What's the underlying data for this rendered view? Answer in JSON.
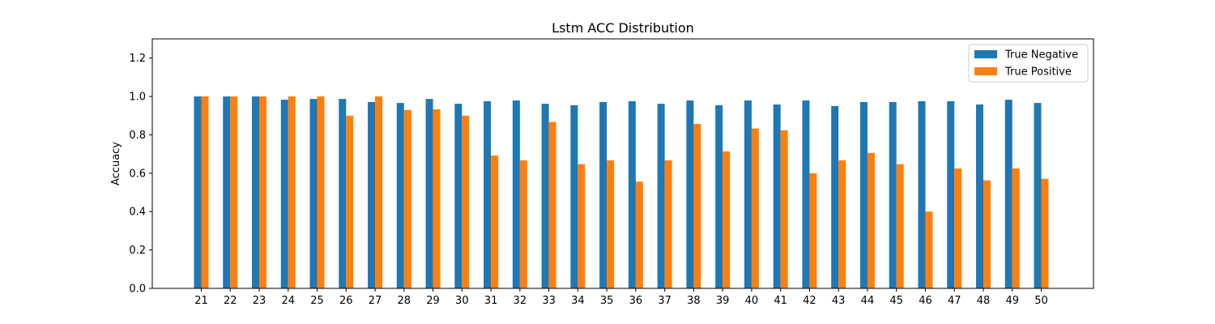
{
  "chart_data": {
    "type": "bar",
    "title": "Lstm ACC Distribution",
    "xlabel": "",
    "ylabel": "Accuacy",
    "ylim": [
      0,
      1.3
    ],
    "yticks": [
      0.0,
      0.2,
      0.4,
      0.6,
      0.8,
      1.0,
      1.2
    ],
    "ytick_labels": [
      "0.0",
      "0.2",
      "0.4",
      "0.6",
      "0.8",
      "1.0",
      "1.2"
    ],
    "grid": false,
    "legend_position": "top-right",
    "categories": [
      "21",
      "22",
      "23",
      "24",
      "25",
      "26",
      "27",
      "28",
      "29",
      "30",
      "31",
      "32",
      "33",
      "34",
      "35",
      "36",
      "37",
      "38",
      "39",
      "40",
      "41",
      "42",
      "43",
      "44",
      "45",
      "46",
      "47",
      "48",
      "49",
      "50"
    ],
    "series": [
      {
        "name": "True Negative",
        "color": "#1f77b4",
        "values": [
          1.0,
          1.0,
          1.0,
          0.983,
          0.987,
          0.987,
          0.971,
          0.966,
          0.987,
          0.962,
          0.975,
          0.979,
          0.962,
          0.954,
          0.971,
          0.975,
          0.962,
          0.979,
          0.954,
          0.979,
          0.958,
          0.979,
          0.95,
          0.971,
          0.971,
          0.975,
          0.975,
          0.958,
          0.983,
          0.966
        ]
      },
      {
        "name": "True Positive",
        "color": "#ff7f0e",
        "values": [
          1.0,
          1.0,
          1.0,
          1.0,
          1.0,
          0.9,
          1.0,
          0.929,
          0.933,
          0.9,
          0.692,
          0.667,
          0.867,
          0.647,
          0.667,
          0.556,
          0.667,
          0.857,
          0.714,
          0.833,
          0.824,
          0.6,
          0.667,
          0.706,
          0.647,
          0.4,
          0.625,
          0.563,
          0.625,
          0.571
        ]
      }
    ]
  }
}
